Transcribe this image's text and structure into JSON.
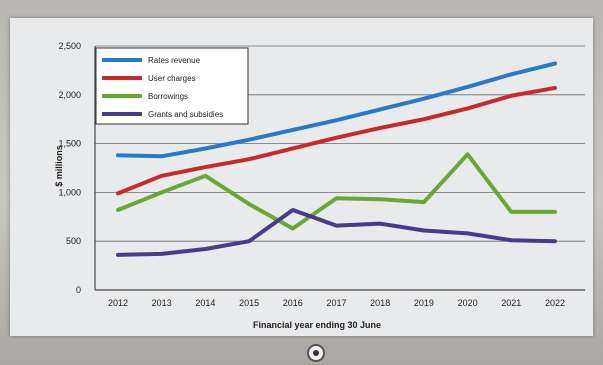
{
  "chart_data": {
    "type": "line",
    "xlabel": "Financial year ending 30 June",
    "ylabel": "$ millions",
    "categories": [
      "2012",
      "2013",
      "2014",
      "2015",
      "2016",
      "2017",
      "2018",
      "2019",
      "2020",
      "2021",
      "2022"
    ],
    "ylim": [
      0,
      2500
    ],
    "yticks": [
      0,
      500,
      1000,
      1500,
      2000,
      2500
    ],
    "ytick_labels": [
      "0",
      "500",
      "1,000",
      "1,500",
      "2,000",
      "2,500"
    ],
    "grid": true,
    "legend_position": "top-left",
    "series": [
      {
        "name": "Rates revenue",
        "color": "#2a78c9",
        "values": [
          1380,
          1370,
          1450,
          1540,
          1640,
          1740,
          1850,
          1960,
          2080,
          2210,
          2320
        ]
      },
      {
        "name": "User charges",
        "color": "#c62a2f",
        "values": [
          990,
          1170,
          1260,
          1340,
          1450,
          1560,
          1660,
          1750,
          1860,
          1990,
          2070
        ]
      },
      {
        "name": "Borrowings",
        "color": "#6aa63a",
        "values": [
          820,
          1000,
          1170,
          880,
          630,
          940,
          930,
          900,
          1390,
          800,
          800
        ]
      },
      {
        "name": "Grants and subsidies",
        "color": "#4b3a8c",
        "values": [
          360,
          370,
          420,
          500,
          820,
          660,
          680,
          610,
          580,
          510,
          500
        ]
      }
    ]
  }
}
